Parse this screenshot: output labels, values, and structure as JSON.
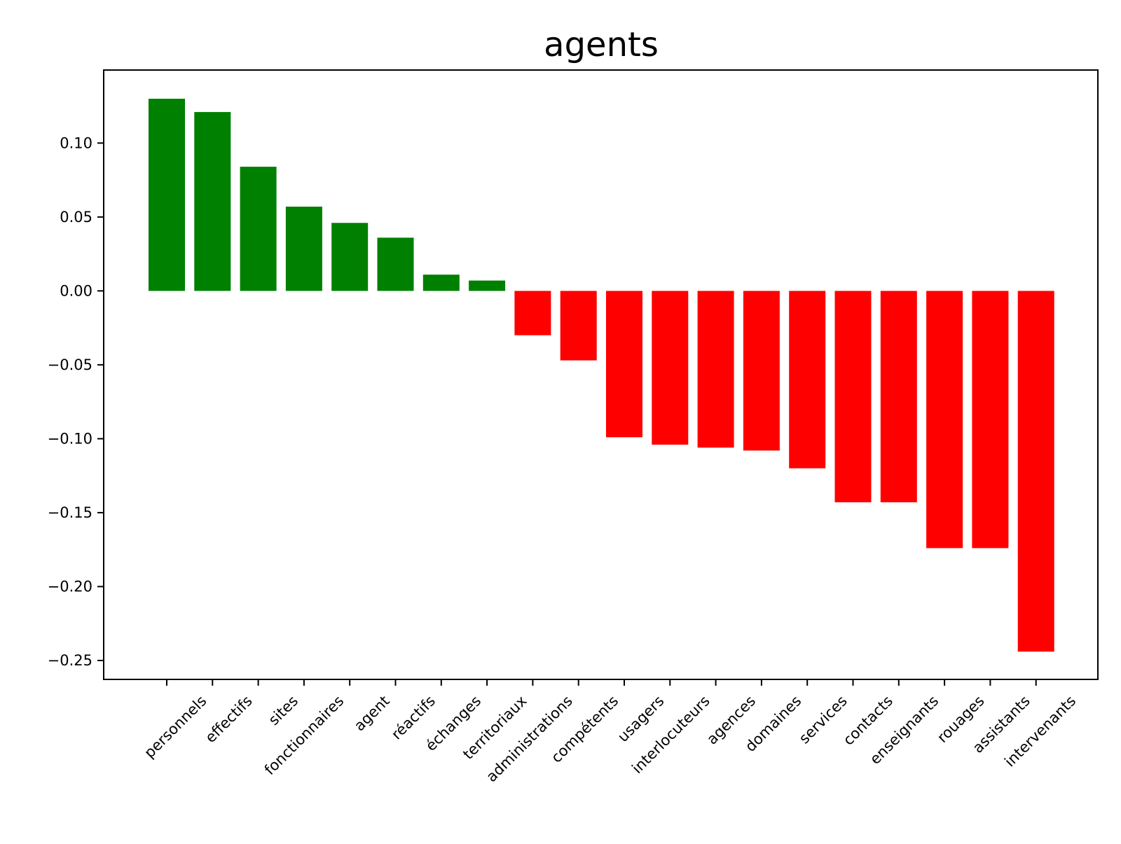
{
  "chart_data": {
    "type": "bar",
    "title": "agents",
    "xlabel": "",
    "ylabel": "",
    "categories": [
      "personnels",
      "effectifs",
      "sites",
      "fonctionnaires",
      "agent",
      "réactifs",
      "échanges",
      "territoriaux",
      "administrations",
      "compétents",
      "usagers",
      "interlocuteurs",
      "agences",
      "domaines",
      "services",
      "contacts",
      "enseignants",
      "rouages",
      "assistants",
      "intervenants"
    ],
    "values": [
      0.13,
      0.121,
      0.084,
      0.057,
      0.046,
      0.036,
      0.011,
      0.007,
      -0.03,
      -0.047,
      -0.099,
      -0.104,
      -0.106,
      -0.108,
      -0.12,
      -0.143,
      -0.143,
      -0.174,
      -0.174,
      -0.244
    ],
    "ylim": [
      -0.2628,
      0.1494
    ],
    "yticks": [
      0.1,
      0.05,
      0.0,
      -0.05,
      -0.1,
      -0.15,
      -0.2,
      -0.25
    ],
    "ytick_labels": [
      "0.10",
      "0.05",
      "0.00",
      "−0.05",
      "−0.10",
      "−0.15",
      "−0.20",
      "−0.25"
    ],
    "colors": {
      "positive": "#008000",
      "negative": "#ff0000"
    },
    "grid": false,
    "legend": "none"
  }
}
